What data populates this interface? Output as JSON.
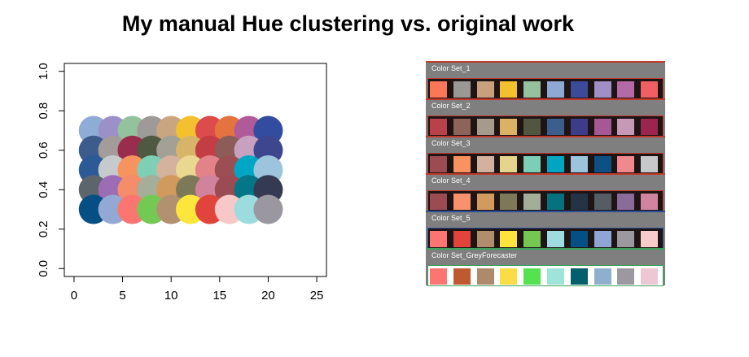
{
  "page": {
    "title": "My manual Hue clustering vs. original work"
  },
  "chart_data": [
    {
      "type": "scatter",
      "title": "",
      "xlabel": "",
      "ylabel": "",
      "xlim": [
        -1,
        26
      ],
      "ylim": [
        -0.04,
        1.04
      ],
      "xticks": [
        "0",
        "5",
        "10",
        "15",
        "20",
        "25"
      ],
      "yticks": [
        "0.0",
        "0.2",
        "0.4",
        "0.6",
        "0.8",
        "1.0"
      ],
      "xticks_values": [
        0,
        5,
        10,
        15,
        20,
        25
      ],
      "yticks_values": [
        0,
        0.2,
        0.4,
        0.6,
        0.8,
        1.0
      ],
      "grid": false,
      "point_shape": "large filled circle",
      "x": [
        2,
        4,
        6,
        8,
        10,
        12,
        14,
        16,
        18,
        20
      ],
      "rows": [
        {
          "y": 0.7,
          "colors": [
            "#8eacd5",
            "#9b90c8",
            "#94c29c",
            "#9e9a97",
            "#c9a67f",
            "#f3c12e",
            "#dc4c4c",
            "#e5733f",
            "#b05a98",
            "#324c9f"
          ]
        },
        {
          "y": 0.6,
          "colors": [
            "#3c5c8e",
            "#a49c9a",
            "#9a2d4e",
            "#4f5840",
            "#a3a096",
            "#d8b468",
            "#c43c44",
            "#8c5c58",
            "#c8a0c0",
            "#3f4690"
          ]
        },
        {
          "y": 0.5,
          "colors": [
            "#2c5a96",
            "#c6cacc",
            "#f7935f",
            "#7fcfb7",
            "#d4b29b",
            "#ead890",
            "#e28289",
            "#9c4f52",
            "#00a7c4",
            "#9cc4dc"
          ]
        },
        {
          "y": 0.4,
          "colors": [
            "#5c646c",
            "#9c6cb4",
            "#f38d6a",
            "#a5ae99",
            "#d1995c",
            "#7d7858",
            "#d0839b",
            "#9a4c52",
            "#047687",
            "#343a52"
          ]
        },
        {
          "y": 0.3,
          "colors": [
            "#054f85",
            "#93a8d2",
            "#fc7571",
            "#74c955",
            "#b19170",
            "#fce63c",
            "#e0443c",
            "#f8c8c8",
            "#9cdcdf",
            "#9b97a0"
          ]
        }
      ]
    },
    {
      "type": "table",
      "title": "",
      "sets": [
        {
          "label": "Color Set_1",
          "border": "#c0392b",
          "gap_color": "#1e1414",
          "colors": [
            "#fb7758",
            "#9b9795",
            "#c8a07d",
            "#f3c12e",
            "#96c19d",
            "#8eaad4",
            "#3c4a9a",
            "#9e90c6",
            "#b56aa8",
            "#f05f62"
          ]
        },
        {
          "label": "Color Set_2",
          "border": "#c0392b",
          "gap_color": "#1e1414",
          "colors": [
            "#b9424a",
            "#8c6459",
            "#a69a8c",
            "#dbb264",
            "#525640",
            "#3b5e8c",
            "#3d3c88",
            "#a65894",
            "#c69ab5",
            "#9c2550"
          ]
        },
        {
          "label": "Color Set_3",
          "border": "#c0392b",
          "gap_color": "#1e1414",
          "colors": [
            "#9a4c52",
            "#f9925f",
            "#d2b29e",
            "#e4d48c",
            "#7ccfb6",
            "#00a5c2",
            "#9cc4dc",
            "#0c5085",
            "#f08890",
            "#c6c8ca"
          ]
        },
        {
          "label": "Color Set_4",
          "border": "#c0392b",
          "gap_color": "#1e1414",
          "colors": [
            "#9a4c52",
            "#f8916c",
            "#d29a5e",
            "#7f7858",
            "#a4ad98",
            "#04727f",
            "#243444",
            "#555c64",
            "#8a6c9a",
            "#d084a0"
          ]
        },
        {
          "label": "Color Set_5",
          "border": "#2c4e96",
          "gap_color": "#1e1414",
          "colors": [
            "#fc7570",
            "#e0443a",
            "#af8d6d",
            "#fde43e",
            "#74c852",
            "#9edcdf",
            "#044f84",
            "#8fa6d4",
            "#9c98a0",
            "#f8ccca"
          ]
        },
        {
          "label": "Color Set_GreyForecaster",
          "border": "#3aa35c",
          "gap_color": "#ffffff",
          "colors": [
            "#fc7570",
            "#bf5a30",
            "#ae8a6c",
            "#fcdc44",
            "#54e250",
            "#9ee4d8",
            "#02606c",
            "#8fb0cc",
            "#9c98a0",
            "#ecc8d4"
          ]
        }
      ]
    }
  ]
}
